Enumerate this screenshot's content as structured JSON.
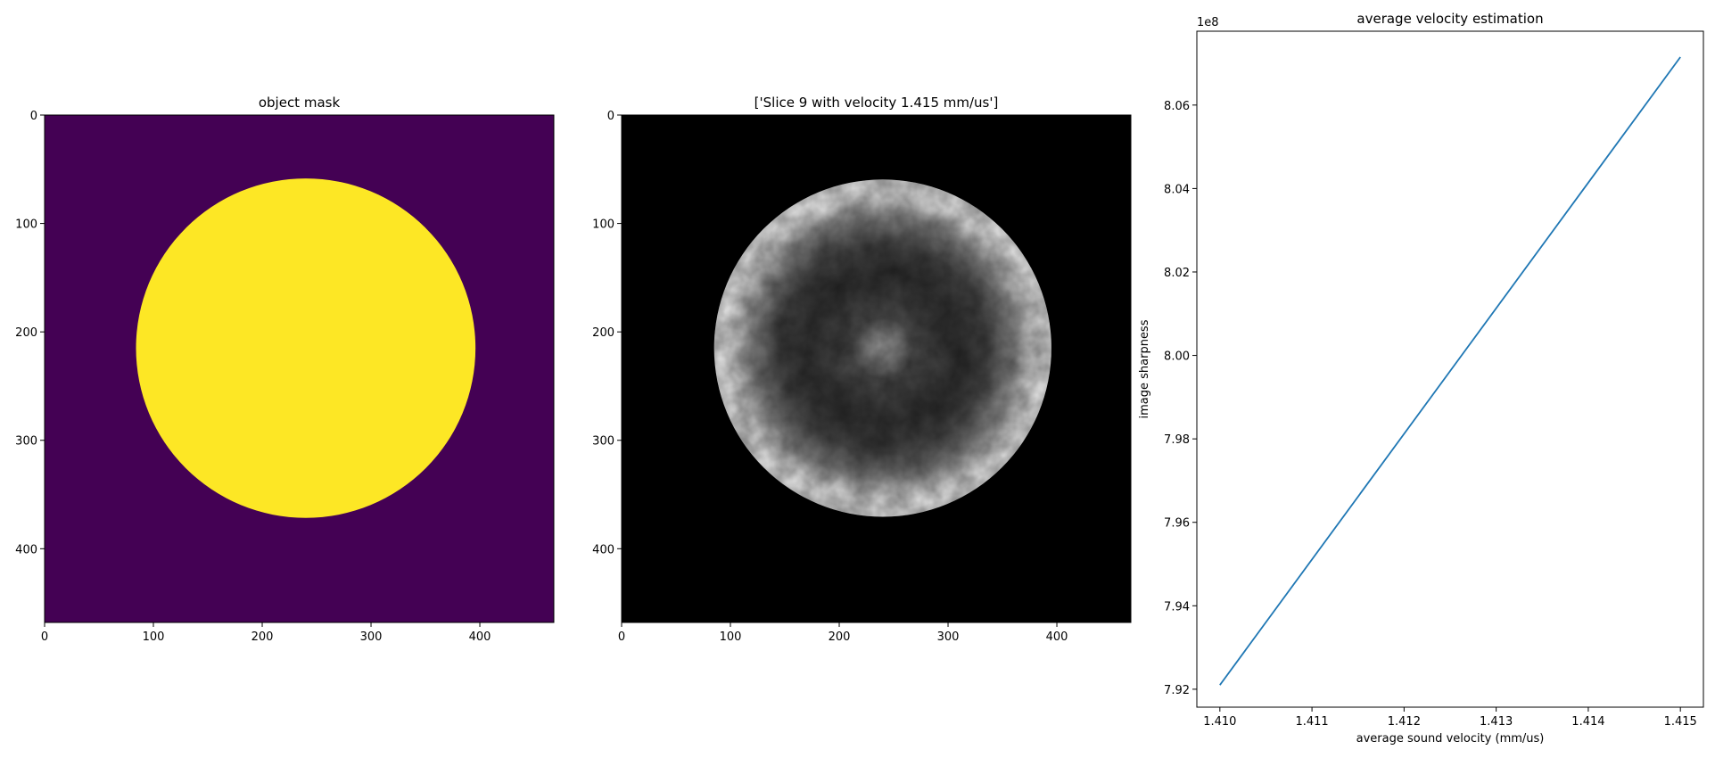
{
  "chart_data": [
    {
      "type": "heatmap",
      "title": "object mask",
      "xlim": [
        0,
        468
      ],
      "ylim": [
        468,
        0
      ],
      "xticks": [
        0,
        100,
        200,
        300,
        400
      ],
      "yticks": [
        0,
        100,
        200,
        300,
        400
      ],
      "content": {
        "shape": "circle",
        "center": [
          240,
          215
        ],
        "radius": 156,
        "background_color": "#440154",
        "fill_color": "#fde725"
      }
    },
    {
      "type": "heatmap",
      "title": "['Slice 9 with velocity 1.415 mm/us']",
      "xlim": [
        0,
        468
      ],
      "ylim": [
        468,
        0
      ],
      "xticks": [
        0,
        100,
        200,
        300,
        400
      ],
      "yticks": [
        0,
        100,
        200,
        300,
        400
      ],
      "content": {
        "shape": "circle",
        "center": [
          240,
          215
        ],
        "radius": 155,
        "colormap": "gray",
        "background_color": "#000000"
      }
    },
    {
      "type": "line",
      "title": "average velocity estimation",
      "xlabel": "average sound velocity (mm/us)",
      "ylabel": "image sharpness",
      "y_offset_label": "1e8",
      "xlim": [
        1.40975,
        1.41525
      ],
      "ylim": [
        7.9157,
        8.0777
      ],
      "xticks": [
        1.41,
        1.411,
        1.412,
        1.413,
        1.414,
        1.415
      ],
      "xtick_labels": [
        "1.410",
        "1.411",
        "1.412",
        "1.413",
        "1.414",
        "1.415"
      ],
      "yticks": [
        7.92,
        7.94,
        7.96,
        7.98,
        8.0,
        8.02,
        8.04,
        8.06
      ],
      "ytick_labels": [
        "7.92",
        "7.94",
        "7.96",
        "7.98",
        "8.00",
        "8.02",
        "8.04",
        "8.06"
      ],
      "series": [
        {
          "x": [
            1.41,
            1.415
          ],
          "y": [
            7.921,
            8.0715
          ],
          "color": "#1f77b4"
        }
      ]
    }
  ]
}
